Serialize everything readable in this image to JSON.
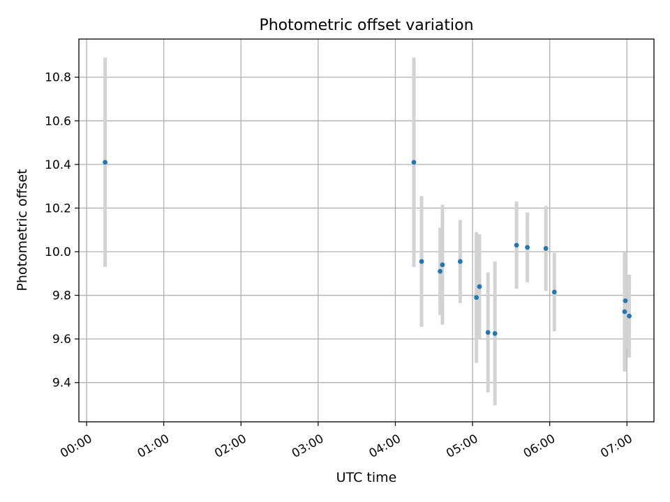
{
  "chart_data": {
    "type": "scatter",
    "title": "Photometric offset variation",
    "xlabel": "UTC time",
    "ylabel": "Photometric offset",
    "x_unit": "hours (UTC)",
    "xlim": [
      -0.1,
      7.35
    ],
    "ylim": [
      9.22,
      10.975
    ],
    "grid": true,
    "x_ticks": [
      {
        "value": 0,
        "label": "00:00"
      },
      {
        "value": 1,
        "label": "01:00"
      },
      {
        "value": 2,
        "label": "02:00"
      },
      {
        "value": 3,
        "label": "03:00"
      },
      {
        "value": 4,
        "label": "04:00"
      },
      {
        "value": 5,
        "label": "05:00"
      },
      {
        "value": 6,
        "label": "06:00"
      },
      {
        "value": 7,
        "label": "07:00"
      }
    ],
    "y_ticks": [
      {
        "value": 9.4,
        "label": "9.4"
      },
      {
        "value": 9.6,
        "label": "9.6"
      },
      {
        "value": 9.8,
        "label": "9.8"
      },
      {
        "value": 10.0,
        "label": "10.0"
      },
      {
        "value": 10.2,
        "label": "10.2"
      },
      {
        "value": 10.4,
        "label": "10.4"
      },
      {
        "value": 10.6,
        "label": "10.6"
      },
      {
        "value": 10.8,
        "label": "10.8"
      }
    ],
    "colors": {
      "point": "#1f77b4",
      "errorbar": "#d3d3d3"
    },
    "points": [
      {
        "x": 0.24,
        "y": 10.41,
        "err": 0.48
      },
      {
        "x": 4.24,
        "y": 10.41,
        "err": 0.48
      },
      {
        "x": 4.34,
        "y": 9.955,
        "err": 0.3
      },
      {
        "x": 4.58,
        "y": 9.91,
        "err": 0.2
      },
      {
        "x": 4.61,
        "y": 9.94,
        "err": 0.275
      },
      {
        "x": 4.84,
        "y": 9.955,
        "err": 0.19
      },
      {
        "x": 5.05,
        "y": 9.79,
        "err": 0.3
      },
      {
        "x": 5.09,
        "y": 9.84,
        "err": 0.24
      },
      {
        "x": 5.2,
        "y": 9.63,
        "err": 0.275
      },
      {
        "x": 5.29,
        "y": 9.625,
        "err": 0.33
      },
      {
        "x": 5.57,
        "y": 10.03,
        "err": 0.2
      },
      {
        "x": 5.71,
        "y": 10.02,
        "err": 0.16
      },
      {
        "x": 5.95,
        "y": 10.015,
        "err": 0.195
      },
      {
        "x": 6.06,
        "y": 9.815,
        "err": 0.18
      },
      {
        "x": 6.97,
        "y": 9.725,
        "err": 0.275
      },
      {
        "x": 6.98,
        "y": 9.775,
        "err": 0.22
      },
      {
        "x": 7.03,
        "y": 9.705,
        "err": 0.19
      }
    ]
  }
}
